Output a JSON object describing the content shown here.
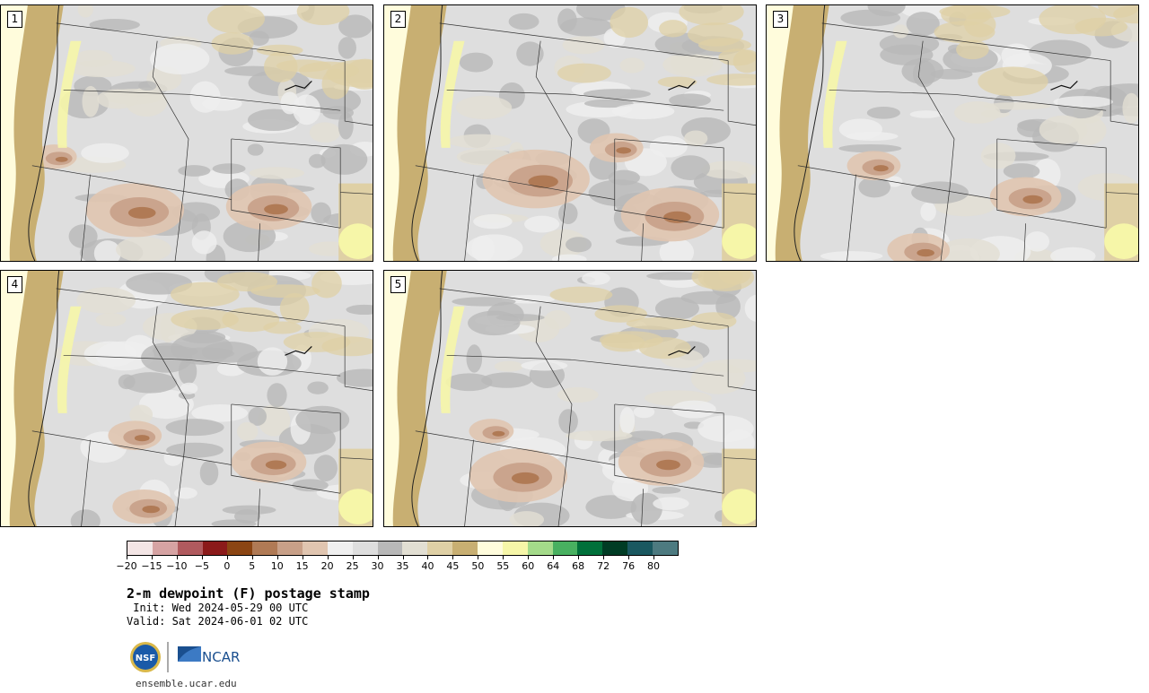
{
  "panels": [
    {
      "label": "1"
    },
    {
      "label": "2"
    },
    {
      "label": "3"
    },
    {
      "label": "4"
    },
    {
      "label": "5"
    }
  ],
  "colorbar": {
    "colors": [
      "#f3e5e5",
      "#d6a3a3",
      "#b05a5e",
      "#8b1a1a",
      "#8b4513",
      "#b07a55",
      "#c8a088",
      "#e0c5b0",
      "#efefef",
      "#dedede",
      "#b8b8b8",
      "#e2dfd3",
      "#dfd0a5",
      "#c8af72",
      "#fffcdc",
      "#f6f6a8",
      "#a4da8a",
      "#48b060",
      "#00703a",
      "#003c24",
      "#1a5860",
      "#4d7a80"
    ],
    "tick_labels": [
      "−20",
      "−15",
      "−10",
      "−5",
      "0",
      "5",
      "10",
      "15",
      "20",
      "25",
      "30",
      "35",
      "40",
      "45",
      "50",
      "55",
      "60",
      "64",
      "68",
      "72",
      "76",
      "80"
    ]
  },
  "title": "2-m dewpoint (F) postage stamp",
  "init": " Init: Wed 2024-05-29 00 UTC",
  "valid": "Valid: Sat 2024-06-01 02 UTC",
  "logos": {
    "nsf": "NSF",
    "ncar": "NCAR"
  },
  "url": "ensemble.ucar.edu"
}
